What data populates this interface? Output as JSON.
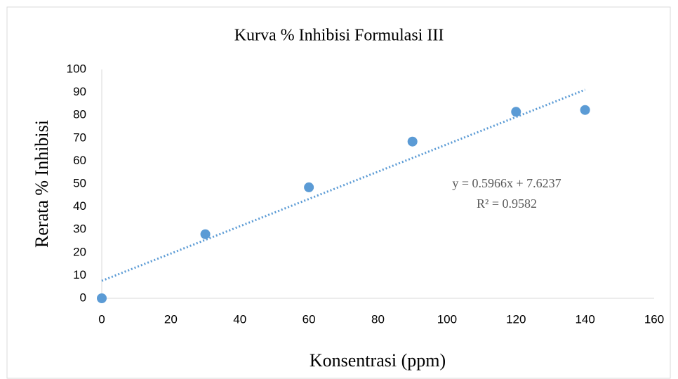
{
  "chart_data": {
    "type": "scatter",
    "title": "Kurva  % Inhibisi Formulasi III",
    "xlabel": "Konsentrasi (ppm)",
    "ylabel": "Rerata % Inhibisi",
    "x": [
      0,
      30,
      60,
      90,
      120,
      140
    ],
    "series": [
      {
        "color": "#5b9bd5",
        "values": [
          0,
          28,
          48.5,
          68.5,
          81.5,
          82.3
        ]
      }
    ],
    "trendline": {
      "slope": 0.5966,
      "intercept": 7.6237,
      "color": "#5b9bd5",
      "style": "dotted"
    },
    "annotations": [
      "y = 0.5966x + 7.6237",
      "R² = 0.9582"
    ],
    "xlim": [
      0,
      160
    ],
    "xticks": [
      0,
      20,
      40,
      60,
      80,
      100,
      120,
      140,
      160
    ],
    "ylim": [
      0,
      100
    ],
    "yticks": [
      0,
      10,
      20,
      30,
      40,
      50,
      60,
      70,
      80,
      90,
      100
    ],
    "grid": false
  }
}
